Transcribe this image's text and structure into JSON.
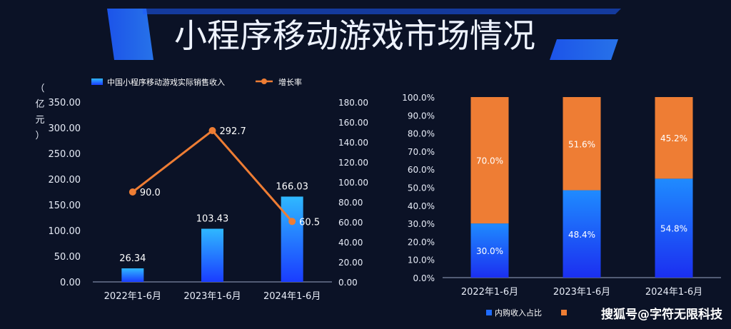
{
  "title": "小程序移动游戏市场情况",
  "watermark": "搜狐号@字符无限科技",
  "colors": {
    "background": "#0b1226",
    "bar_top": "#2fb8ff",
    "bar_bottom": "#1a3cff",
    "line": "#ee7d34",
    "stack_top": "#ee7d34"
  },
  "chart_data": [
    {
      "type": "bar",
      "categories": [
        "2022年1-6月",
        "2023年1-6月",
        "2024年1-6月"
      ],
      "series": [
        {
          "name": "中国小程序移动游戏实际销售收入",
          "type": "bar",
          "axis": "left",
          "values": [
            26.34,
            103.43,
            166.03
          ],
          "labels": [
            "26.34",
            "103.43",
            "166.03"
          ]
        },
        {
          "name": "增长率",
          "type": "line",
          "axis": "right",
          "values": [
            90.0,
            292.7,
            60.5
          ],
          "labels": [
            "90.0",
            "292.7",
            "60.5"
          ]
        }
      ],
      "ylabel": "（亿元）",
      "ylim": [
        0,
        350
      ],
      "yticks": [
        "0.00",
        "50.00",
        "100.00",
        "150.00",
        "200.00",
        "250.00",
        "300.00",
        "350.00"
      ],
      "y2lim": [
        0,
        180
      ],
      "y2ticks": [
        "0.00",
        "20.00",
        "40.00",
        "60.00",
        "80.00",
        "100.00",
        "120.00",
        "140.00",
        "160.00",
        "180.00"
      ],
      "legend": "top-center",
      "grid": false
    },
    {
      "type": "bar",
      "stacked": true,
      "categories": [
        "2022年1-6月",
        "2023年1-6月",
        "2024年1-6月"
      ],
      "series": [
        {
          "name": "内购收入占比",
          "values": [
            30.0,
            48.4,
            54.8
          ],
          "labels": [
            "30.0%",
            "48.4%",
            "54.8%"
          ]
        },
        {
          "name": "",
          "values": [
            70.0,
            51.6,
            45.2
          ],
          "labels": [
            "70.0%",
            "51.6%",
            "45.2%"
          ]
        }
      ],
      "ylim": [
        0,
        100
      ],
      "yticks": [
        "0.0%",
        "10.0%",
        "20.0%",
        "30.0%",
        "40.0%",
        "50.0%",
        "60.0%",
        "70.0%",
        "80.0%",
        "90.0%",
        "100.0%"
      ],
      "legend": "bottom-center",
      "grid": false
    }
  ]
}
